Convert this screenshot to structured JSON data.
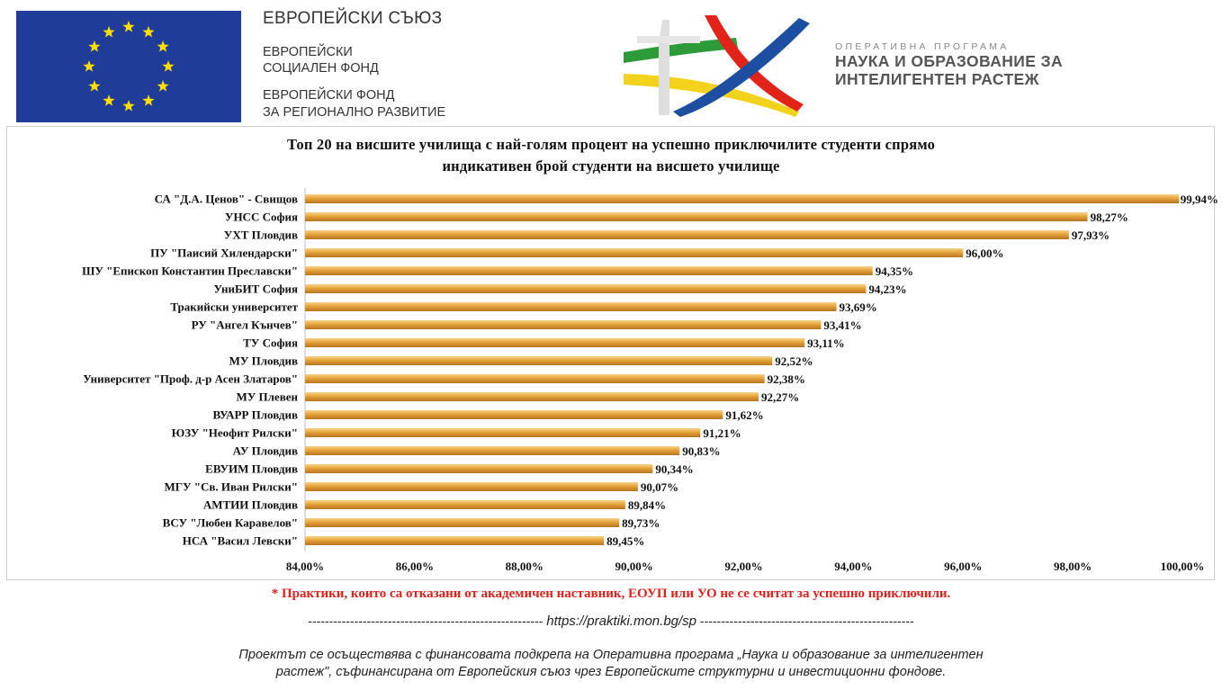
{
  "header": {
    "eu_title": "ЕВРОПЕЙСКИ СЪЮЗ",
    "fund1_line1": "ЕВРОПЕЙСКИ",
    "fund1_line2": "СОЦИАЛЕН ФОНД",
    "fund2_line1": "ЕВРОПЕЙСКИ ФОНД",
    "fund2_line2": "ЗА РЕГИОНАЛНО РАЗВИТИЕ",
    "op_kicker": "ОПЕРАТИВНА ПРОГРАМА",
    "op_name_line1": "НАУКА И ОБРАЗОВАНИЕ ЗА",
    "op_name_line2": "ИНТЕЛИГЕНТЕН РАСТЕЖ",
    "colors": {
      "eu_blue": "#1f3c98",
      "eu_star": "#ffdd00",
      "green": "#2e9b3a",
      "yellow": "#f2d21b",
      "red": "#e2231a",
      "blue": "#1c4ea1"
    }
  },
  "chart_data": {
    "type": "bar",
    "orientation": "horizontal",
    "title_line1": "Топ 20 на висшите училища с най-голям процент на  успешно приключилите студенти спрямо",
    "title_line2": "индикативен брой студенти на висшето училище",
    "categories": [
      "СА \"Д.А. Ценов\" - Свищов",
      "УНСС София",
      "УХТ Пловдив",
      "ПУ \"Паисий Хилендарски\"",
      "ШУ \"Епископ Константин Преславски\"",
      "УниБИТ София",
      "Тракийски университет",
      "РУ \"Ангел Кънчев\"",
      "ТУ София",
      "МУ Пловдив",
      "Университет \"Проф. д-р Асен Златаров\"",
      "МУ Плевен",
      "ВУАРР Пловдив",
      "ЮЗУ \"Неофит Рилски\"",
      "АУ  Пловдив",
      "ЕВУИМ Пловдив",
      "МГУ \"Св. Иван Рилски\"",
      "АМТИИ Пловдив",
      "ВСУ \"Любен Каравелов\"",
      "НСА  \"Васил Левски\""
    ],
    "values": [
      99.94,
      98.27,
      97.93,
      96.0,
      94.35,
      94.23,
      93.69,
      93.41,
      93.11,
      92.52,
      92.38,
      92.27,
      91.62,
      91.21,
      90.83,
      90.34,
      90.07,
      89.84,
      89.73,
      89.45
    ],
    "value_labels": [
      "99,94%",
      "98,27%",
      "97,93%",
      "96,00%",
      "94,35%",
      "94,23%",
      "93,69%",
      "93,41%",
      "93,11%",
      "92,52%",
      "92,38%",
      "92,27%",
      "91,62%",
      "91,21%",
      "90,83%",
      "90,34%",
      "90,07%",
      "89,84%",
      "89,73%",
      "89,45%"
    ],
    "xlim": [
      84,
      100
    ],
    "xticks": [
      84,
      86,
      88,
      90,
      92,
      94,
      96,
      98,
      100
    ],
    "xtick_labels": [
      "84,00%",
      "86,00%",
      "88,00%",
      "90,00%",
      "92,00%",
      "94,00%",
      "96,00%",
      "98,00%",
      "100,00%"
    ],
    "bar_color": "#e6a33a",
    "bar_highlight": "#f7d28c",
    "bar_shadow": "#b77420",
    "grid": false,
    "legend": "none"
  },
  "note": "* Практики, които са отказани от академичен наставник, ЕОУП или УО не се считат за успешно приключили.",
  "url_dashes_left": "--------------------------------------------------------",
  "url": "https://praktiki.mon.bg/sp",
  "url_dashes_right": "---------------------------------------------------",
  "footer_line1": "Проектът се осъществява с финансовата подкрепа на Оперативна програма „Наука и образование за интелигентен",
  "footer_line2": "растеж\", съфинансирана от Европейския съюз чрез Европейските структурни и инвестиционни фондове."
}
